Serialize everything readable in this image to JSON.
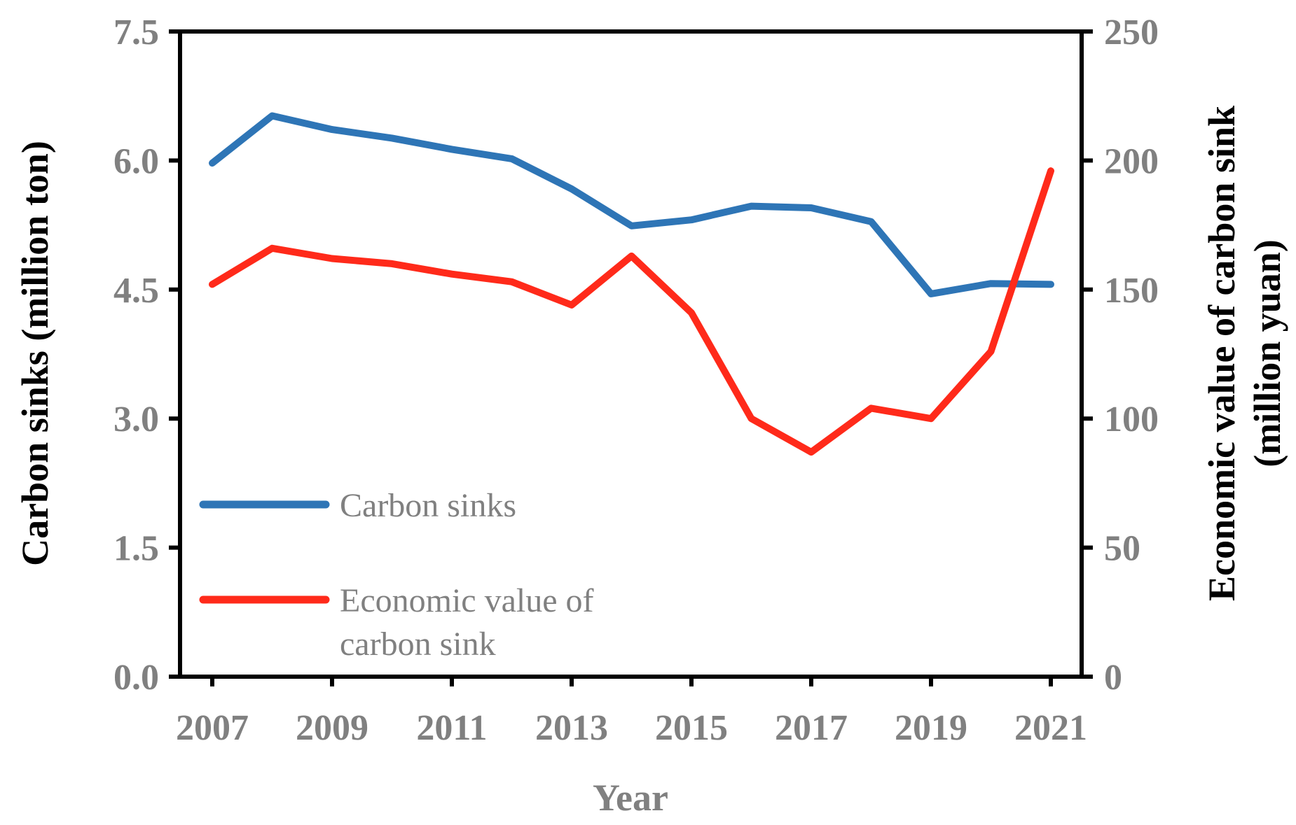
{
  "chart_data": {
    "type": "line",
    "x": [
      2007,
      2008,
      2009,
      2010,
      2011,
      2012,
      2013,
      2014,
      2015,
      2016,
      2017,
      2018,
      2019,
      2020,
      2021
    ],
    "xticks": [
      "2007",
      "2009",
      "2011",
      "2013",
      "2015",
      "2017",
      "2019",
      "2021"
    ],
    "xlabel": "Year",
    "ylabel_left": "Carbon sinks (million ton)",
    "ylabel_right_line1": "Economic value of carbon sink",
    "ylabel_right_line2": "(million yuan)",
    "ylim_left": [
      0,
      7.5
    ],
    "ylim_right": [
      0,
      250
    ],
    "yticks_left": [
      "0.0",
      "1.5",
      "3.0",
      "4.5",
      "6.0",
      "7.5"
    ],
    "yticks_right": [
      "0",
      "50",
      "100",
      "150",
      "200",
      "250"
    ],
    "series": [
      {
        "name": "Carbon sinks",
        "axis": "left",
        "color": "#2E75B6",
        "values": [
          5.97,
          6.52,
          6.36,
          6.26,
          6.13,
          6.02,
          5.67,
          5.24,
          5.31,
          5.47,
          5.45,
          5.29,
          4.45,
          4.57,
          4.56
        ]
      },
      {
        "name": "Economic value of carbon sink",
        "axis": "right",
        "color": "#FF2A1A",
        "values": [
          152,
          166,
          162,
          160,
          156,
          153,
          144,
          163,
          141,
          100,
          87,
          104,
          100,
          126,
          196
        ]
      }
    ],
    "legend": [
      {
        "label_line1": "Carbon sinks",
        "label_line2": ""
      },
      {
        "label_line1": "Economic value of",
        "label_line2": "carbon sink"
      }
    ]
  }
}
